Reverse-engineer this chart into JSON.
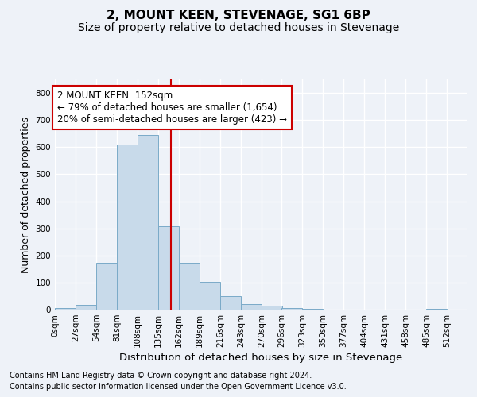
{
  "title": "2, MOUNT KEEN, STEVENAGE, SG1 6BP",
  "subtitle": "Size of property relative to detached houses in Stevenage",
  "xlabel": "Distribution of detached houses by size in Stevenage",
  "ylabel": "Number of detached properties",
  "footer_line1": "Contains HM Land Registry data © Crown copyright and database right 2024.",
  "footer_line2": "Contains public sector information licensed under the Open Government Licence v3.0.",
  "property_size": 152,
  "property_label": "2 MOUNT KEEN: 152sqm",
  "annotation_line1": "← 79% of detached houses are smaller (1,654)",
  "annotation_line2": "20% of semi-detached houses are larger (423) →",
  "bar_color": "#c8daea",
  "bar_edge_color": "#7aaac8",
  "vline_color": "#cc0000",
  "annotation_box_edgecolor": "#cc0000",
  "bg_color": "#eef2f8",
  "grid_color": "#ffffff",
  "bin_edges": [
    0,
    27,
    54,
    81,
    108,
    135,
    162,
    189,
    216,
    243,
    270,
    296,
    323,
    350,
    377,
    404,
    431,
    458,
    485,
    512,
    539
  ],
  "bin_counts": [
    5,
    18,
    172,
    610,
    645,
    308,
    172,
    103,
    50,
    20,
    14,
    5,
    2,
    1,
    0,
    0,
    0,
    0,
    4,
    0
  ],
  "xlim": [
    0,
    539
  ],
  "ylim": [
    0,
    850
  ],
  "yticks": [
    0,
    100,
    200,
    300,
    400,
    500,
    600,
    700,
    800
  ],
  "title_fontsize": 11,
  "subtitle_fontsize": 10,
  "ylabel_fontsize": 9,
  "xlabel_fontsize": 9.5,
  "tick_fontsize": 7.5,
  "footer_fontsize": 7,
  "annotation_fontsize": 8.5
}
